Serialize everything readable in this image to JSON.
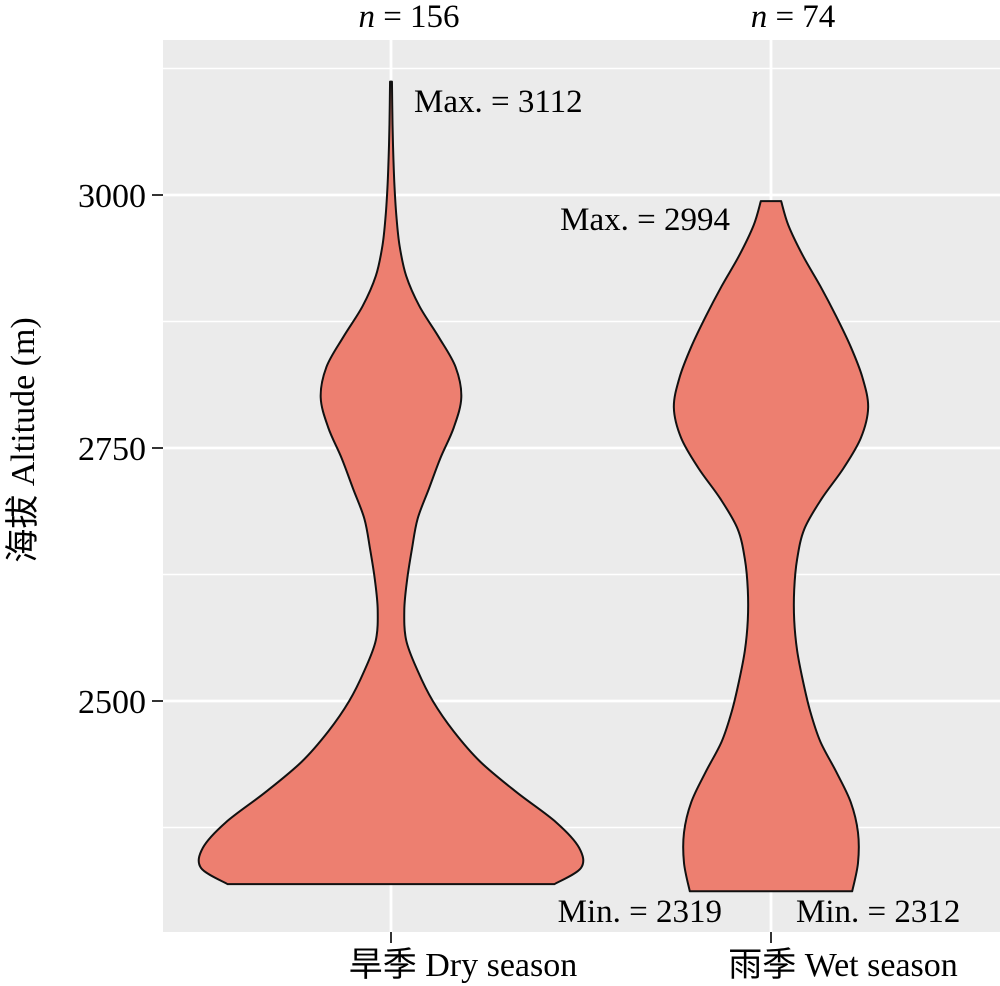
{
  "chart_data": {
    "type": "violin",
    "ylabel": "海拔 Altitude (m)",
    "ylim": [
      2226,
      3350
    ],
    "yticks": [
      2500,
      2750,
      3000
    ],
    "grid": true,
    "fill_color": "#ED7F70",
    "panel_color": "#EBEBEB",
    "categories": [
      "旱季 Dry season",
      "雨季 Wet season"
    ],
    "series": [
      {
        "category": "旱季 Dry season",
        "n_label": "n = 156",
        "min": 2319,
        "max": 3112,
        "min_label": "Min. = 2319",
        "max_label": "Max. = 3112",
        "profile": [
          [
            2319,
            0.86
          ],
          [
            2335,
            1.0
          ],
          [
            2355,
            0.99
          ],
          [
            2380,
            0.87
          ],
          [
            2410,
            0.66
          ],
          [
            2440,
            0.47
          ],
          [
            2470,
            0.33
          ],
          [
            2500,
            0.22
          ],
          [
            2530,
            0.14
          ],
          [
            2560,
            0.08
          ],
          [
            2590,
            0.07
          ],
          [
            2620,
            0.085
          ],
          [
            2650,
            0.11
          ],
          [
            2680,
            0.14
          ],
          [
            2710,
            0.2
          ],
          [
            2740,
            0.26
          ],
          [
            2770,
            0.33
          ],
          [
            2800,
            0.37
          ],
          [
            2830,
            0.34
          ],
          [
            2860,
            0.25
          ],
          [
            2890,
            0.15
          ],
          [
            2920,
            0.08
          ],
          [
            2950,
            0.045
          ],
          [
            2980,
            0.028
          ],
          [
            3010,
            0.018
          ],
          [
            3040,
            0.012
          ],
          [
            3070,
            0.008
          ],
          [
            3112,
            0.005
          ]
        ]
      },
      {
        "category": "雨季 Wet season",
        "n_label": "n = 74",
        "min": 2312,
        "max": 2994,
        "min_label": "Min. = 2312",
        "max_label": "Max. = 2994",
        "profile": [
          [
            2312,
            0.56
          ],
          [
            2340,
            0.6
          ],
          [
            2370,
            0.6
          ],
          [
            2400,
            0.55
          ],
          [
            2430,
            0.45
          ],
          [
            2460,
            0.34
          ],
          [
            2490,
            0.27
          ],
          [
            2520,
            0.22
          ],
          [
            2550,
            0.18
          ],
          [
            2580,
            0.16
          ],
          [
            2610,
            0.16
          ],
          [
            2640,
            0.18
          ],
          [
            2670,
            0.23
          ],
          [
            2700,
            0.35
          ],
          [
            2730,
            0.5
          ],
          [
            2760,
            0.62
          ],
          [
            2790,
            0.67
          ],
          [
            2820,
            0.63
          ],
          [
            2850,
            0.55
          ],
          [
            2880,
            0.45
          ],
          [
            2910,
            0.34
          ],
          [
            2940,
            0.22
          ],
          [
            2970,
            0.12
          ],
          [
            2994,
            0.07
          ]
        ]
      }
    ]
  }
}
